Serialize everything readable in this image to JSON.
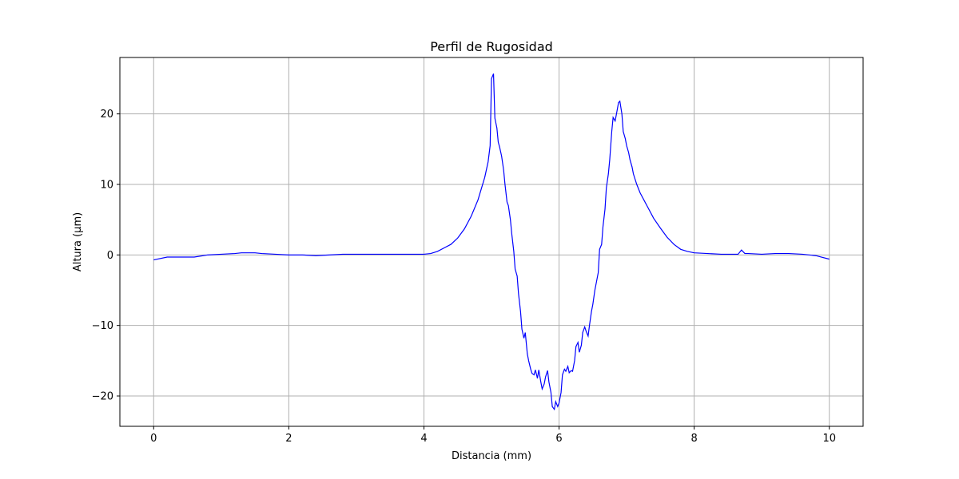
{
  "chart_data": {
    "type": "line",
    "title": "Perfil de Rugosidad",
    "xlabel": "Distancia (mm)",
    "ylabel": "Altura (µm)",
    "xlim": [
      -0.5,
      10.5
    ],
    "ylim": [
      -24.3,
      28.0
    ],
    "xticks": [
      0,
      2,
      4,
      6,
      8,
      10
    ],
    "xtick_labels": [
      "0",
      "2",
      "4",
      "6",
      "8",
      "10"
    ],
    "yticks": [
      -20,
      -10,
      0,
      10,
      20
    ],
    "ytick_labels": [
      "−20",
      "−10",
      "0",
      "10",
      "20"
    ],
    "grid": true,
    "line_color": "#0000ff",
    "series": [
      {
        "x": [
          0.0,
          0.2,
          0.4,
          0.6,
          0.8,
          1.0,
          1.2,
          1.3,
          1.4,
          1.5,
          1.6,
          1.8,
          2.0,
          2.2,
          2.4,
          2.6,
          2.8,
          3.0,
          3.2,
          3.4,
          3.6,
          3.8,
          4.0,
          4.1,
          4.2,
          4.3,
          4.4,
          4.5,
          4.6,
          4.7,
          4.8,
          4.9,
          4.95,
          4.98,
          5.0,
          5.03,
          5.05,
          5.08,
          5.1,
          5.12,
          5.15,
          5.18,
          5.2,
          5.23,
          5.25,
          5.28,
          5.3,
          5.33,
          5.35,
          5.38,
          5.4,
          5.43,
          5.45,
          5.48,
          5.5,
          5.53,
          5.55,
          5.58,
          5.6,
          5.63,
          5.65,
          5.68,
          5.7,
          5.73,
          5.75,
          5.78,
          5.8,
          5.83,
          5.85,
          5.88,
          5.9,
          5.93,
          5.95,
          5.98,
          6.0,
          6.03,
          6.05,
          6.08,
          6.1,
          6.13,
          6.15,
          6.18,
          6.2,
          6.23,
          6.25,
          6.28,
          6.3,
          6.33,
          6.35,
          6.38,
          6.4,
          6.43,
          6.45,
          6.48,
          6.5,
          6.53,
          6.55,
          6.58,
          6.6,
          6.63,
          6.65,
          6.68,
          6.7,
          6.73,
          6.75,
          6.78,
          6.8,
          6.83,
          6.85,
          6.88,
          6.9,
          6.93,
          6.95,
          6.98,
          7.0,
          7.03,
          7.05,
          7.08,
          7.1,
          7.15,
          7.2,
          7.3,
          7.4,
          7.5,
          7.6,
          7.7,
          7.8,
          7.9,
          8.0,
          8.2,
          8.4,
          8.6,
          8.65,
          8.7,
          8.75,
          8.8,
          9.0,
          9.2,
          9.4,
          9.6,
          9.8,
          10.0
        ],
        "y": [
          -0.7,
          -0.3,
          -0.3,
          -0.3,
          0.0,
          0.1,
          0.2,
          0.3,
          0.3,
          0.3,
          0.2,
          0.1,
          0.0,
          0.0,
          -0.1,
          0.0,
          0.1,
          0.1,
          0.1,
          0.1,
          0.1,
          0.1,
          0.1,
          0.2,
          0.5,
          1.0,
          1.5,
          2.4,
          3.7,
          5.5,
          7.8,
          11.0,
          13.2,
          15.5,
          25.0,
          25.7,
          19.4,
          18.0,
          16.0,
          15.3,
          14.0,
          12.0,
          10.0,
          7.5,
          7.0,
          5.0,
          3.0,
          0.5,
          -2.0,
          -3.0,
          -5.5,
          -8.0,
          -10.5,
          -11.8,
          -11.0,
          -14.0,
          -15.0,
          -16.2,
          -16.8,
          -17.0,
          -16.3,
          -17.5,
          -16.3,
          -18.0,
          -19.0,
          -18.3,
          -17.3,
          -16.4,
          -18.0,
          -19.5,
          -21.5,
          -21.9,
          -20.8,
          -21.5,
          -21.0,
          -19.5,
          -17.0,
          -16.2,
          -16.5,
          -15.8,
          -16.7,
          -16.4,
          -16.5,
          -15.0,
          -13.0,
          -12.4,
          -13.8,
          -12.8,
          -11.0,
          -10.2,
          -10.8,
          -11.5,
          -10.0,
          -8.0,
          -7.0,
          -5.0,
          -4.0,
          -2.5,
          0.8,
          1.5,
          4.0,
          6.5,
          9.5,
          11.5,
          13.5,
          17.5,
          19.5,
          19.0,
          20.0,
          21.6,
          21.8,
          20.0,
          17.5,
          16.5,
          15.5,
          14.5,
          13.5,
          12.5,
          11.5,
          10.0,
          8.8,
          7.0,
          5.2,
          3.8,
          2.5,
          1.5,
          0.8,
          0.5,
          0.3,
          0.2,
          0.1,
          0.1,
          0.1,
          0.7,
          0.2,
          0.2,
          0.1,
          0.2,
          0.2,
          0.1,
          -0.1,
          -0.6
        ]
      }
    ]
  }
}
